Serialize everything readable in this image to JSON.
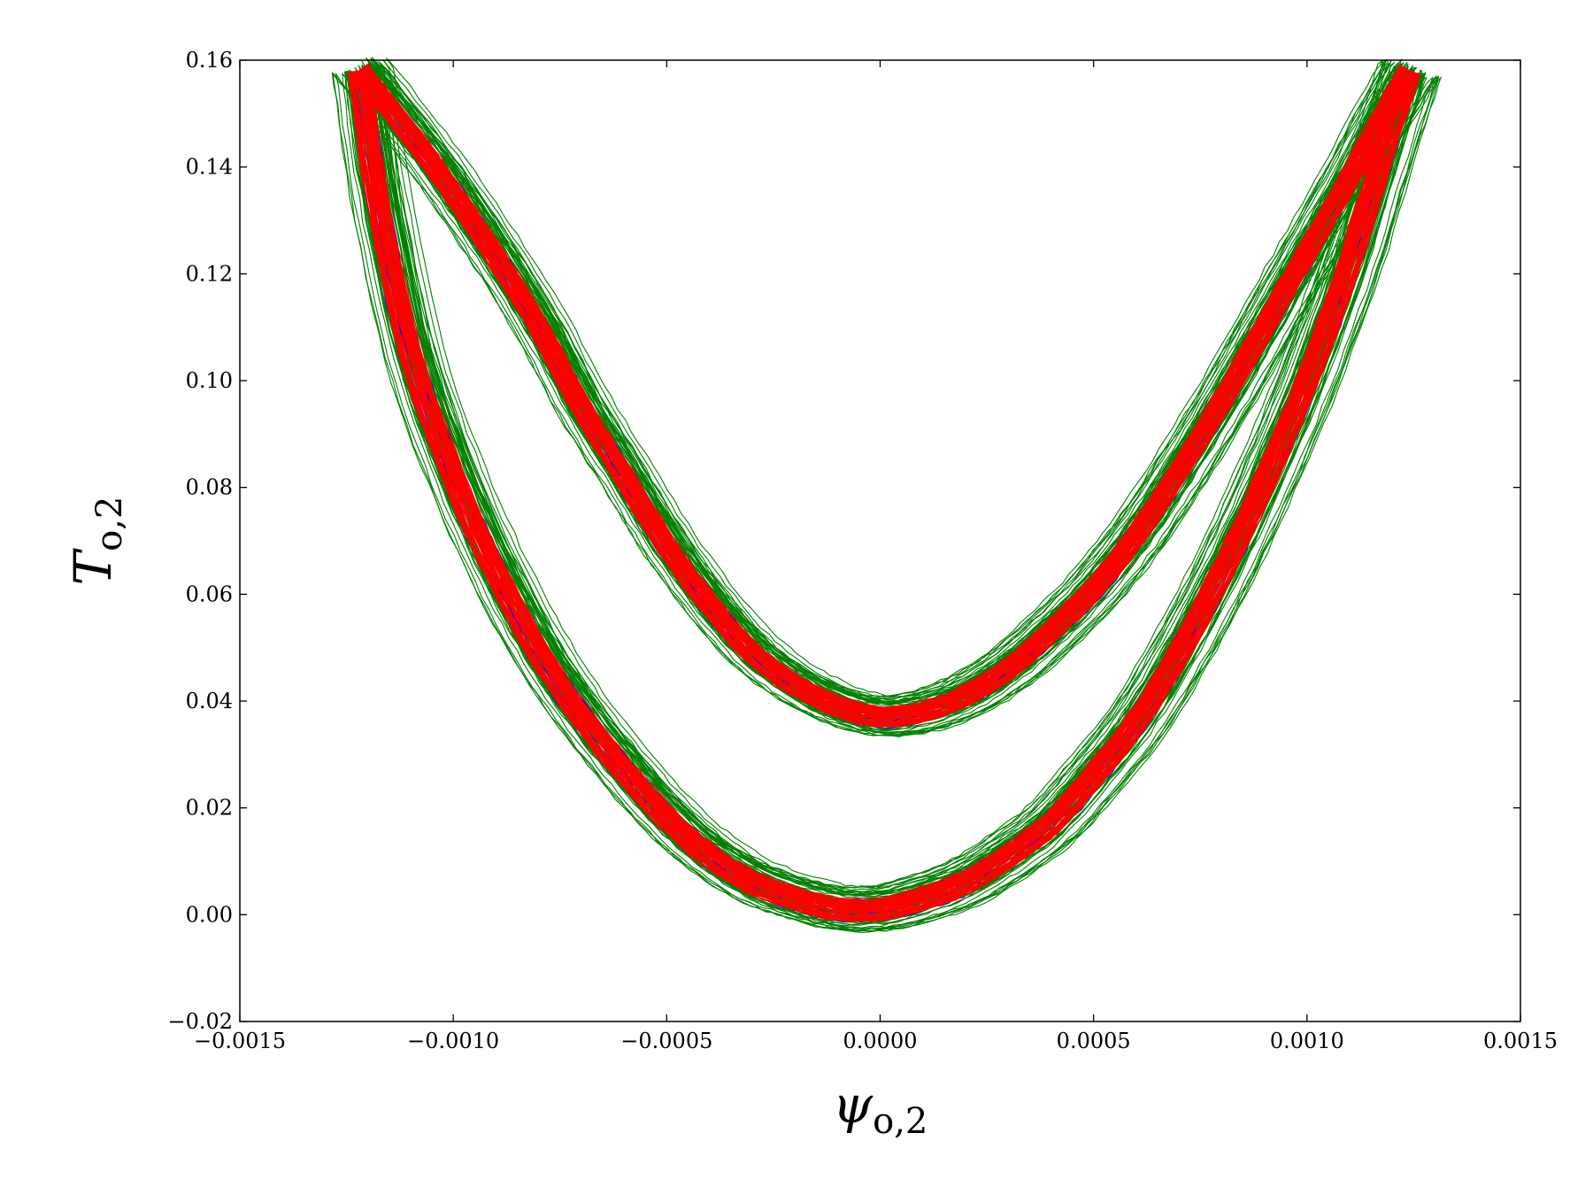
{
  "chart_data": {
    "type": "line",
    "title": "",
    "xlabel_main": "ψ",
    "xlabel_sub": "o,2",
    "ylabel_main": "T",
    "ylabel_sub": "o,2",
    "xlim": [
      -0.0015,
      0.0015
    ],
    "ylim": [
      -0.02,
      0.16
    ],
    "xticks": [
      -0.0015,
      -0.001,
      -0.0005,
      0.0,
      0.0005,
      0.001,
      0.0015
    ],
    "xtick_labels": [
      "−0.0015",
      "−0.0010",
      "−0.0005",
      "0.0000",
      "0.0005",
      "0.0010",
      "0.0015"
    ],
    "yticks": [
      -0.02,
      0.0,
      0.02,
      0.04,
      0.06,
      0.08,
      0.1,
      0.12,
      0.14,
      0.16
    ],
    "ytick_labels": [
      "−0.02",
      "0.00",
      "0.02",
      "0.04",
      "0.06",
      "0.08",
      "0.10",
      "0.12",
      "0.14",
      "0.16"
    ],
    "grid": false,
    "legend": "none",
    "loop_outer": {
      "x": [
        -0.00122,
        -0.00118,
        -0.0011,
        -0.001,
        -0.0009,
        -0.0008,
        -0.0007,
        -0.0006,
        -0.0005,
        -0.0004,
        -0.0003,
        -0.0002,
        -0.0001,
        0.0,
        0.0001,
        0.0002,
        0.0003,
        0.0004,
        0.0005,
        0.0006,
        0.0007,
        0.0008,
        0.0009,
        0.001,
        0.0011,
        0.00118,
        0.00124
      ],
      "y": [
        0.158,
        0.135,
        0.105,
        0.082,
        0.064,
        0.049,
        0.037,
        0.027,
        0.018,
        0.011,
        0.006,
        0.003,
        0.001,
        0.001,
        0.003,
        0.006,
        0.011,
        0.017,
        0.026,
        0.036,
        0.049,
        0.064,
        0.081,
        0.1,
        0.122,
        0.143,
        0.158
      ]
    },
    "loop_inner": {
      "x": [
        -0.00122,
        -0.0011,
        -0.001,
        -0.0009,
        -0.0008,
        -0.0007,
        -0.0006,
        -0.0005,
        -0.0004,
        -0.0003,
        -0.0002,
        -0.0001,
        0.0,
        0.0001,
        0.0002,
        0.0003,
        0.0004,
        0.0005,
        0.0006,
        0.0007,
        0.0008,
        0.0009,
        0.001,
        0.0011,
        0.00118,
        0.00124
      ],
      "y": [
        0.158,
        0.146,
        0.135,
        0.123,
        0.11,
        0.095,
        0.082,
        0.069,
        0.058,
        0.049,
        0.043,
        0.039,
        0.037,
        0.038,
        0.041,
        0.046,
        0.053,
        0.061,
        0.071,
        0.083,
        0.096,
        0.11,
        0.124,
        0.138,
        0.15,
        0.158
      ]
    },
    "series": [
      {
        "color": "#0000ff",
        "trajectories": 20,
        "spread": 0.0022
      },
      {
        "color": "#008000",
        "trajectories": 60,
        "spread": 0.0045
      },
      {
        "color": "#ff0000",
        "trajectories": 60,
        "spread": 0.0022
      }
    ]
  }
}
